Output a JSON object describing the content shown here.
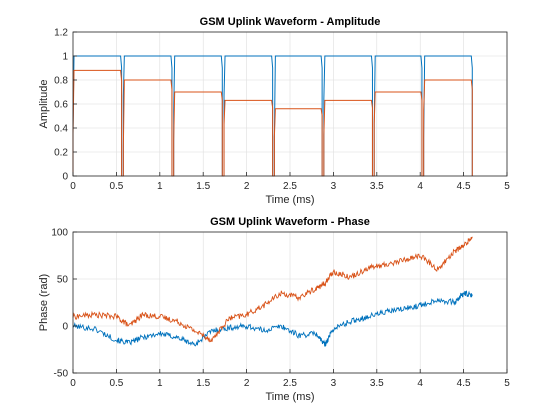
{
  "chart_data": [
    {
      "type": "line",
      "title": "GSM Uplink Waveform - Amplitude",
      "xlabel": "Time (ms)",
      "ylabel": "Amplitude",
      "xlim": [
        0,
        5
      ],
      "ylim": [
        0,
        1.2
      ],
      "xticks": [
        0,
        0.5,
        1,
        1.5,
        2,
        2.5,
        3,
        3.5,
        4,
        4.5,
        5
      ],
      "yticks": [
        0,
        0.2,
        0.4,
        0.6,
        0.8,
        1,
        1.2
      ],
      "xtick_labels": [
        "0",
        "0.5",
        "1",
        "1.5",
        "2",
        "2.5",
        "3",
        "3.5",
        "4",
        "4.5",
        "5"
      ],
      "ytick_labels": [
        "0",
        "0.2",
        "0.4",
        "0.6",
        "0.8",
        "1",
        "1.2"
      ],
      "grid": true,
      "colors": [
        "#0072BD",
        "#D95319"
      ],
      "slots": [
        {
          "start": 0.0,
          "end": 0.56
        },
        {
          "start": 0.58,
          "end": 1.14
        },
        {
          "start": 1.16,
          "end": 1.72
        },
        {
          "start": 1.74,
          "end": 2.3
        },
        {
          "start": 2.32,
          "end": 2.87
        },
        {
          "start": 2.89,
          "end": 3.45
        },
        {
          "start": 3.47,
          "end": 4.02
        },
        {
          "start": 4.04,
          "end": 4.6
        }
      ],
      "series": [
        {
          "values": [
            1,
            1,
            1,
            1,
            1,
            1,
            1,
            1
          ]
        },
        {
          "values": [
            0.88,
            0.8,
            0.7,
            0.63,
            0.56,
            0.63,
            0.7,
            0.8
          ]
        }
      ]
    },
    {
      "type": "line",
      "title": "GSM Uplink Waveform - Phase",
      "xlabel": "Time (ms)",
      "ylabel": "Phase (rad)",
      "xlim": [
        0,
        5
      ],
      "ylim": [
        -50,
        100
      ],
      "xticks": [
        0,
        0.5,
        1,
        1.5,
        2,
        2.5,
        3,
        3.5,
        4,
        4.5,
        5
      ],
      "yticks": [
        -50,
        0,
        50,
        100
      ],
      "xtick_labels": [
        "0",
        "0.5",
        "1",
        "1.5",
        "2",
        "2.5",
        "3",
        "3.5",
        "4",
        "4.5",
        "5"
      ],
      "ytick_labels": [
        "-50",
        "0",
        "50",
        "100"
      ],
      "grid": true,
      "colors": [
        "#0072BD",
        "#D95319"
      ],
      "series": [
        {
          "x": [
            0,
            0.25,
            0.5,
            0.65,
            0.8,
            1.0,
            1.2,
            1.4,
            1.6,
            1.8,
            2.0,
            2.2,
            2.4,
            2.6,
            2.8,
            2.9,
            3.0,
            3.2,
            3.4,
            3.6,
            3.8,
            4.0,
            4.2,
            4.4,
            4.5,
            4.6
          ],
          "values": [
            0,
            -3,
            -15,
            -18,
            -12,
            -8,
            -12,
            -20,
            -5,
            -2,
            0,
            -5,
            0,
            -10,
            -8,
            -20,
            -3,
            5,
            10,
            15,
            18,
            22,
            28,
            25,
            35,
            32
          ]
        },
        {
          "x": [
            0,
            0.25,
            0.5,
            0.65,
            0.8,
            1.0,
            1.2,
            1.4,
            1.6,
            1.8,
            2.0,
            2.2,
            2.4,
            2.6,
            2.8,
            2.9,
            3.0,
            3.2,
            3.4,
            3.6,
            3.8,
            4.0,
            4.2,
            4.4,
            4.5,
            4.6
          ],
          "values": [
            10,
            12,
            10,
            0,
            12,
            10,
            5,
            -5,
            -15,
            8,
            12,
            22,
            35,
            30,
            40,
            45,
            58,
            52,
            62,
            65,
            70,
            75,
            60,
            80,
            85,
            95
          ]
        }
      ]
    }
  ]
}
